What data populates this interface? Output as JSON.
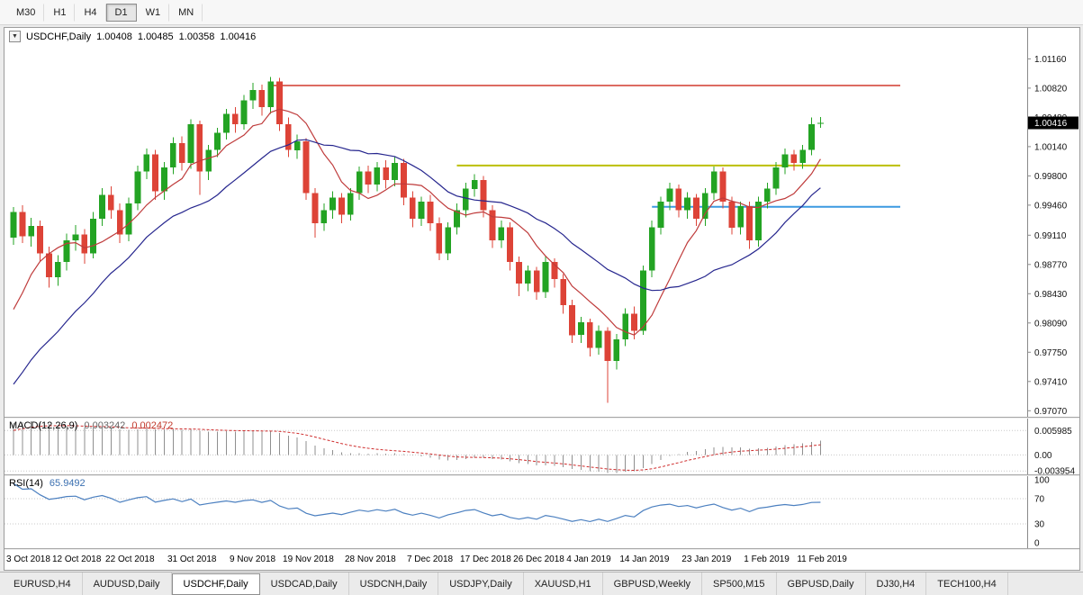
{
  "toolbar": {
    "timeframes": [
      {
        "label": "M30",
        "active": false
      },
      {
        "label": "H1",
        "active": false
      },
      {
        "label": "H4",
        "active": false
      },
      {
        "label": "D1",
        "active": true
      },
      {
        "label": "W1",
        "active": false
      },
      {
        "label": "MN",
        "active": false
      }
    ]
  },
  "chart": {
    "title": {
      "symbol_period": "USDCHF,Daily",
      "open": "1.00408",
      "high": "1.00485",
      "low": "1.00358",
      "close": "1.00416"
    },
    "price_axis": {
      "labels": [
        "1.01160",
        "1.00820",
        "1.00480",
        "1.00140",
        "0.99800",
        "0.99460",
        "0.99110",
        "0.98770",
        "0.98430",
        "0.98090",
        "0.97750",
        "0.97410",
        "0.97070"
      ],
      "current_price": "1.00416",
      "min": 0.97,
      "max": 1.0152
    },
    "levels": [
      {
        "name": "resistance-red",
        "value": 1.0085,
        "from_index": 29,
        "to_index": 100,
        "color": "#d23a2e",
        "width": 1.6
      },
      {
        "name": "resistance-yellow",
        "value": 0.9992,
        "from_index": 50,
        "to_index": 100,
        "color": "#bcbf00",
        "width": 2
      },
      {
        "name": "support-blue",
        "value": 0.9944,
        "from_index": 72,
        "to_index": 100,
        "color": "#3b9ae1",
        "width": 2
      }
    ]
  },
  "chart_data": {
    "type": "candlestick",
    "symbol": "USDCHF",
    "timeframe": "Daily",
    "ohlc_last": {
      "open": 1.00408,
      "high": 1.00485,
      "low": 1.00358,
      "close": 1.00416
    },
    "candle_colors": {
      "up": "#23a323",
      "down": "#dd4337"
    },
    "x_labels": [
      {
        "index": 0,
        "label": "3 Oct 2018"
      },
      {
        "index": 7,
        "label": "12 Oct 2018"
      },
      {
        "index": 13,
        "label": "22 Oct 2018"
      },
      {
        "index": 20,
        "label": "31 Oct 2018"
      },
      {
        "index": 27,
        "label": "9 Nov 2018"
      },
      {
        "index": 33,
        "label": "19 Nov 2018"
      },
      {
        "index": 40,
        "label": "28 Nov 2018"
      },
      {
        "index": 47,
        "label": "7 Dec 2018"
      },
      {
        "index": 53,
        "label": "17 Dec 2018"
      },
      {
        "index": 59,
        "label": "26 Dec 2018"
      },
      {
        "index": 65,
        "label": "4 Jan 2019"
      },
      {
        "index": 71,
        "label": "14 Jan 2019"
      },
      {
        "index": 78,
        "label": "23 Jan 2019"
      },
      {
        "index": 85,
        "label": "1 Feb 2019"
      },
      {
        "index": 91,
        "label": "11 Feb 2019"
      }
    ],
    "candles": [
      [
        0.9908,
        0.9944,
        0.99,
        0.9938
      ],
      [
        0.9938,
        0.9946,
        0.9902,
        0.991
      ],
      [
        0.991,
        0.9931,
        0.9898,
        0.9922
      ],
      [
        0.9922,
        0.9928,
        0.988,
        0.989
      ],
      [
        0.989,
        0.9898,
        0.985,
        0.9862
      ],
      [
        0.9862,
        0.9888,
        0.9852,
        0.988
      ],
      [
        0.988,
        0.9913,
        0.987,
        0.9905
      ],
      [
        0.9905,
        0.9923,
        0.9893,
        0.9912
      ],
      [
        0.9912,
        0.9918,
        0.9878,
        0.989
      ],
      [
        0.989,
        0.9938,
        0.9884,
        0.993
      ],
      [
        0.993,
        0.9966,
        0.9922,
        0.9958
      ],
      [
        0.9958,
        0.9968,
        0.993,
        0.994
      ],
      [
        0.994,
        0.9948,
        0.9902,
        0.9912
      ],
      [
        0.9912,
        0.9955,
        0.9904,
        0.9948
      ],
      [
        0.9948,
        0.9992,
        0.994,
        0.9985
      ],
      [
        0.9985,
        1.0012,
        0.9976,
        1.0005
      ],
      [
        1.0005,
        1.001,
        0.9952,
        0.9962
      ],
      [
        0.9962,
        0.9996,
        0.9952,
        0.999
      ],
      [
        0.999,
        1.0025,
        0.9982,
        1.0018
      ],
      [
        1.0018,
        1.0026,
        0.9986,
        0.9995
      ],
      [
        0.9995,
        1.0046,
        0.9988,
        1.004
      ],
      [
        1.004,
        1.0044,
        0.9958,
        0.9985
      ],
      [
        0.9985,
        1.0016,
        0.9975,
        1.001
      ],
      [
        1.001,
        1.0036,
        1.0002,
        1.003
      ],
      [
        1.003,
        1.0058,
        1.0022,
        1.0052
      ],
      [
        1.0052,
        1.006,
        1.003,
        1.004
      ],
      [
        1.004,
        1.0074,
        1.0034,
        1.0068
      ],
      [
        1.0068,
        1.0088,
        1.0058,
        1.008
      ],
      [
        1.008,
        1.0086,
        1.005,
        1.006
      ],
      [
        1.006,
        1.0095,
        1.0052,
        1.009
      ],
      [
        1.009,
        1.0094,
        1.0032,
        1.004
      ],
      [
        1.004,
        1.0048,
        1.0002,
        1.001
      ],
      [
        1.001,
        1.0028,
        1.0,
        1.002
      ],
      [
        1.002,
        1.0024,
        0.9952,
        0.996
      ],
      [
        0.996,
        0.9966,
        0.9908,
        0.9925
      ],
      [
        0.9925,
        0.9948,
        0.9916,
        0.994
      ],
      [
        0.994,
        0.9962,
        0.993,
        0.9955
      ],
      [
        0.9955,
        0.996,
        0.9925,
        0.9935
      ],
      [
        0.9935,
        0.9966,
        0.9928,
        0.996
      ],
      [
        0.996,
        0.9991,
        0.9952,
        0.9985
      ],
      [
        0.9985,
        0.9992,
        0.996,
        0.997
      ],
      [
        0.997,
        0.9996,
        0.9962,
        0.999
      ],
      [
        0.999,
        0.9998,
        0.9965,
        0.9975
      ],
      [
        0.9975,
        1.0002,
        0.9968,
        0.9995
      ],
      [
        0.9995,
        1.0,
        0.9946,
        0.9955
      ],
      [
        0.9955,
        0.9962,
        0.992,
        0.993
      ],
      [
        0.993,
        0.9956,
        0.9922,
        0.995
      ],
      [
        0.995,
        0.9958,
        0.9916,
        0.9925
      ],
      [
        0.9925,
        0.9932,
        0.9882,
        0.989
      ],
      [
        0.989,
        0.9926,
        0.9882,
        0.992
      ],
      [
        0.992,
        0.9948,
        0.9912,
        0.994
      ],
      [
        0.994,
        0.9972,
        0.9932,
        0.9965
      ],
      [
        0.9965,
        0.9982,
        0.9956,
        0.9975
      ],
      [
        0.9975,
        0.998,
        0.9932,
        0.994
      ],
      [
        0.994,
        0.9946,
        0.9896,
        0.9905
      ],
      [
        0.9905,
        0.9928,
        0.9896,
        0.992
      ],
      [
        0.992,
        0.9926,
        0.987,
        0.988
      ],
      [
        0.988,
        0.9886,
        0.984,
        0.9855
      ],
      [
        0.9855,
        0.9876,
        0.9846,
        0.987
      ],
      [
        0.987,
        0.9874,
        0.9836,
        0.9845
      ],
      [
        0.9845,
        0.9886,
        0.9838,
        0.988
      ],
      [
        0.988,
        0.9884,
        0.985,
        0.986
      ],
      [
        0.986,
        0.9866,
        0.982,
        0.983
      ],
      [
        0.983,
        0.9836,
        0.9786,
        0.9795
      ],
      [
        0.9795,
        0.9816,
        0.9786,
        0.981
      ],
      [
        0.981,
        0.9814,
        0.977,
        0.978
      ],
      [
        0.978,
        0.9806,
        0.9772,
        0.98
      ],
      [
        0.98,
        0.9804,
        0.9716,
        0.9765
      ],
      [
        0.9765,
        0.9796,
        0.9755,
        0.979
      ],
      [
        0.979,
        0.9826,
        0.9782,
        0.982
      ],
      [
        0.982,
        0.9828,
        0.979,
        0.98
      ],
      [
        0.98,
        0.9876,
        0.9795,
        0.987
      ],
      [
        0.987,
        0.9928,
        0.9862,
        0.992
      ],
      [
        0.992,
        0.9956,
        0.9912,
        0.995
      ],
      [
        0.995,
        0.9972,
        0.994,
        0.9965
      ],
      [
        0.9965,
        0.997,
        0.9932,
        0.994
      ],
      [
        0.994,
        0.9961,
        0.993,
        0.9955
      ],
      [
        0.9955,
        0.9959,
        0.9922,
        0.993
      ],
      [
        0.993,
        0.9966,
        0.9922,
        0.996
      ],
      [
        0.996,
        0.9991,
        0.9952,
        0.9985
      ],
      [
        0.9985,
        0.999,
        0.9942,
        0.995
      ],
      [
        0.995,
        0.9956,
        0.9912,
        0.992
      ],
      [
        0.992,
        0.995,
        0.9912,
        0.9945
      ],
      [
        0.9945,
        0.995,
        0.9895,
        0.9905
      ],
      [
        0.9905,
        0.9956,
        0.9898,
        0.995
      ],
      [
        0.995,
        0.9972,
        0.9942,
        0.9965
      ],
      [
        0.9965,
        0.9996,
        0.9958,
        0.999
      ],
      [
        0.999,
        1.0012,
        0.9982,
        1.0005
      ],
      [
        1.0005,
        1.001,
        0.9986,
        0.9995
      ],
      [
        0.9995,
        1.0016,
        0.9988,
        1.001
      ],
      [
        1.001,
        1.0048,
        1.0004,
        1.004
      ],
      [
        1.00408,
        1.00485,
        1.00358,
        1.00416
      ]
    ],
    "prehistory_closes": [
      0.952,
      0.9534,
      0.9548,
      0.956,
      0.9555,
      0.9572,
      0.9586,
      0.9598,
      0.959,
      0.9605,
      0.962,
      0.9635,
      0.9628,
      0.9645,
      0.966,
      0.9672,
      0.9665,
      0.968,
      0.9695,
      0.971,
      0.9705,
      0.9722,
      0.974,
      0.9758,
      0.975,
      0.9768,
      0.979,
      0.9825,
      0.9865,
      0.9905
    ],
    "moving_averages": [
      {
        "name": "fast",
        "period": 8,
        "type": "sma",
        "color": "#bf3b3b"
      },
      {
        "name": "slow",
        "period": 20,
        "type": "sma",
        "color": "#26268e"
      }
    ],
    "indicators": {
      "macd": {
        "label": "MACD(12,26,9)",
        "fast": 12,
        "slow": 26,
        "signal": 9,
        "value_main": "0.003242",
        "value_signal": "0.002472",
        "axis_labels": [
          "0.005985",
          "0.00",
          "-0.003954"
        ],
        "histogram_color": "#8f8f8f",
        "signal_color": "#cf2c2c"
      },
      "rsi": {
        "label": "RSI(14)",
        "period": 14,
        "value": "65.9492",
        "axis_labels": [
          "100",
          "70",
          "30",
          "0"
        ],
        "levels": [
          70,
          30
        ],
        "line_color": "#4c80c0"
      }
    }
  },
  "tabs": [
    {
      "label": "EURUSD,H4",
      "active": false
    },
    {
      "label": "AUDUSD,Daily",
      "active": false
    },
    {
      "label": "USDCHF,Daily",
      "active": true
    },
    {
      "label": "USDCAD,Daily",
      "active": false
    },
    {
      "label": "USDCNH,Daily",
      "active": false
    },
    {
      "label": "USDJPY,Daily",
      "active": false
    },
    {
      "label": "XAUUSD,H1",
      "active": false
    },
    {
      "label": "GBPUSD,Weekly",
      "active": false
    },
    {
      "label": "SP500,M15",
      "active": false
    },
    {
      "label": "GBPUSD,Daily",
      "active": false
    },
    {
      "label": "DJ30,H4",
      "active": false
    },
    {
      "label": "TECH100,H4",
      "active": false
    }
  ]
}
